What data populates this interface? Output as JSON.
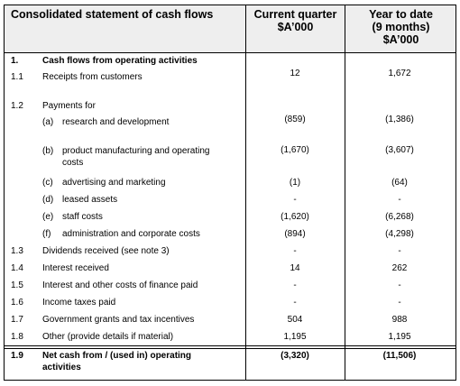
{
  "header": {
    "title": "Consolidated statement of cash flows",
    "columns": [
      {
        "lines": [
          "Current quarter",
          "$A’000"
        ]
      },
      {
        "lines": [
          "Year to date",
          "(9 months)",
          "$A’000"
        ]
      }
    ]
  },
  "rows": [
    {
      "num": "1.",
      "label": "Cash flows from operating activities"
    },
    {
      "num": "1.1",
      "label": "Receipts from customers",
      "current": "12",
      "ytd": "1,672"
    },
    {
      "num": "1.2",
      "label": "Payments for"
    },
    {
      "item": "(a)",
      "label": "research and development",
      "current": "(859)",
      "ytd": "(1,386)"
    },
    {
      "item": "(b)",
      "label": "product manufacturing and operating costs",
      "current": "(1,670)",
      "ytd": "(3,607)"
    },
    {
      "item": "(c)",
      "label": "advertising and marketing",
      "current": "(1)",
      "ytd": "(64)"
    },
    {
      "item": "(d)",
      "label": "leased assets",
      "current": "-",
      "ytd": "-"
    },
    {
      "item": "(e)",
      "label": "staff costs",
      "current": "(1,620)",
      "ytd": "(6,268)"
    },
    {
      "item": "(f)",
      "label": "administration and corporate costs",
      "current": "(894)",
      "ytd": "(4,298)"
    },
    {
      "num": "1.3",
      "label": "Dividends received (see note 3)",
      "current": "-",
      "ytd": "-"
    },
    {
      "num": "1.4",
      "label": "Interest received",
      "current": "14",
      "ytd": "262"
    },
    {
      "num": "1.5",
      "label": "Interest and other costs of finance paid",
      "current": "-",
      "ytd": "-"
    },
    {
      "num": "1.6",
      "label": "Income taxes paid",
      "current": "-",
      "ytd": "-"
    },
    {
      "num": "1.7",
      "label": "Government grants and tax incentives",
      "current": "504",
      "ytd": "988"
    },
    {
      "num": "1.8",
      "label": "Other (provide details if material)",
      "current": "1,195",
      "ytd": "1,195"
    },
    {
      "num": "1.9",
      "label": "Net cash from / (used in) operating activities",
      "current": "(3,320)",
      "ytd": "(11,506)"
    }
  ]
}
